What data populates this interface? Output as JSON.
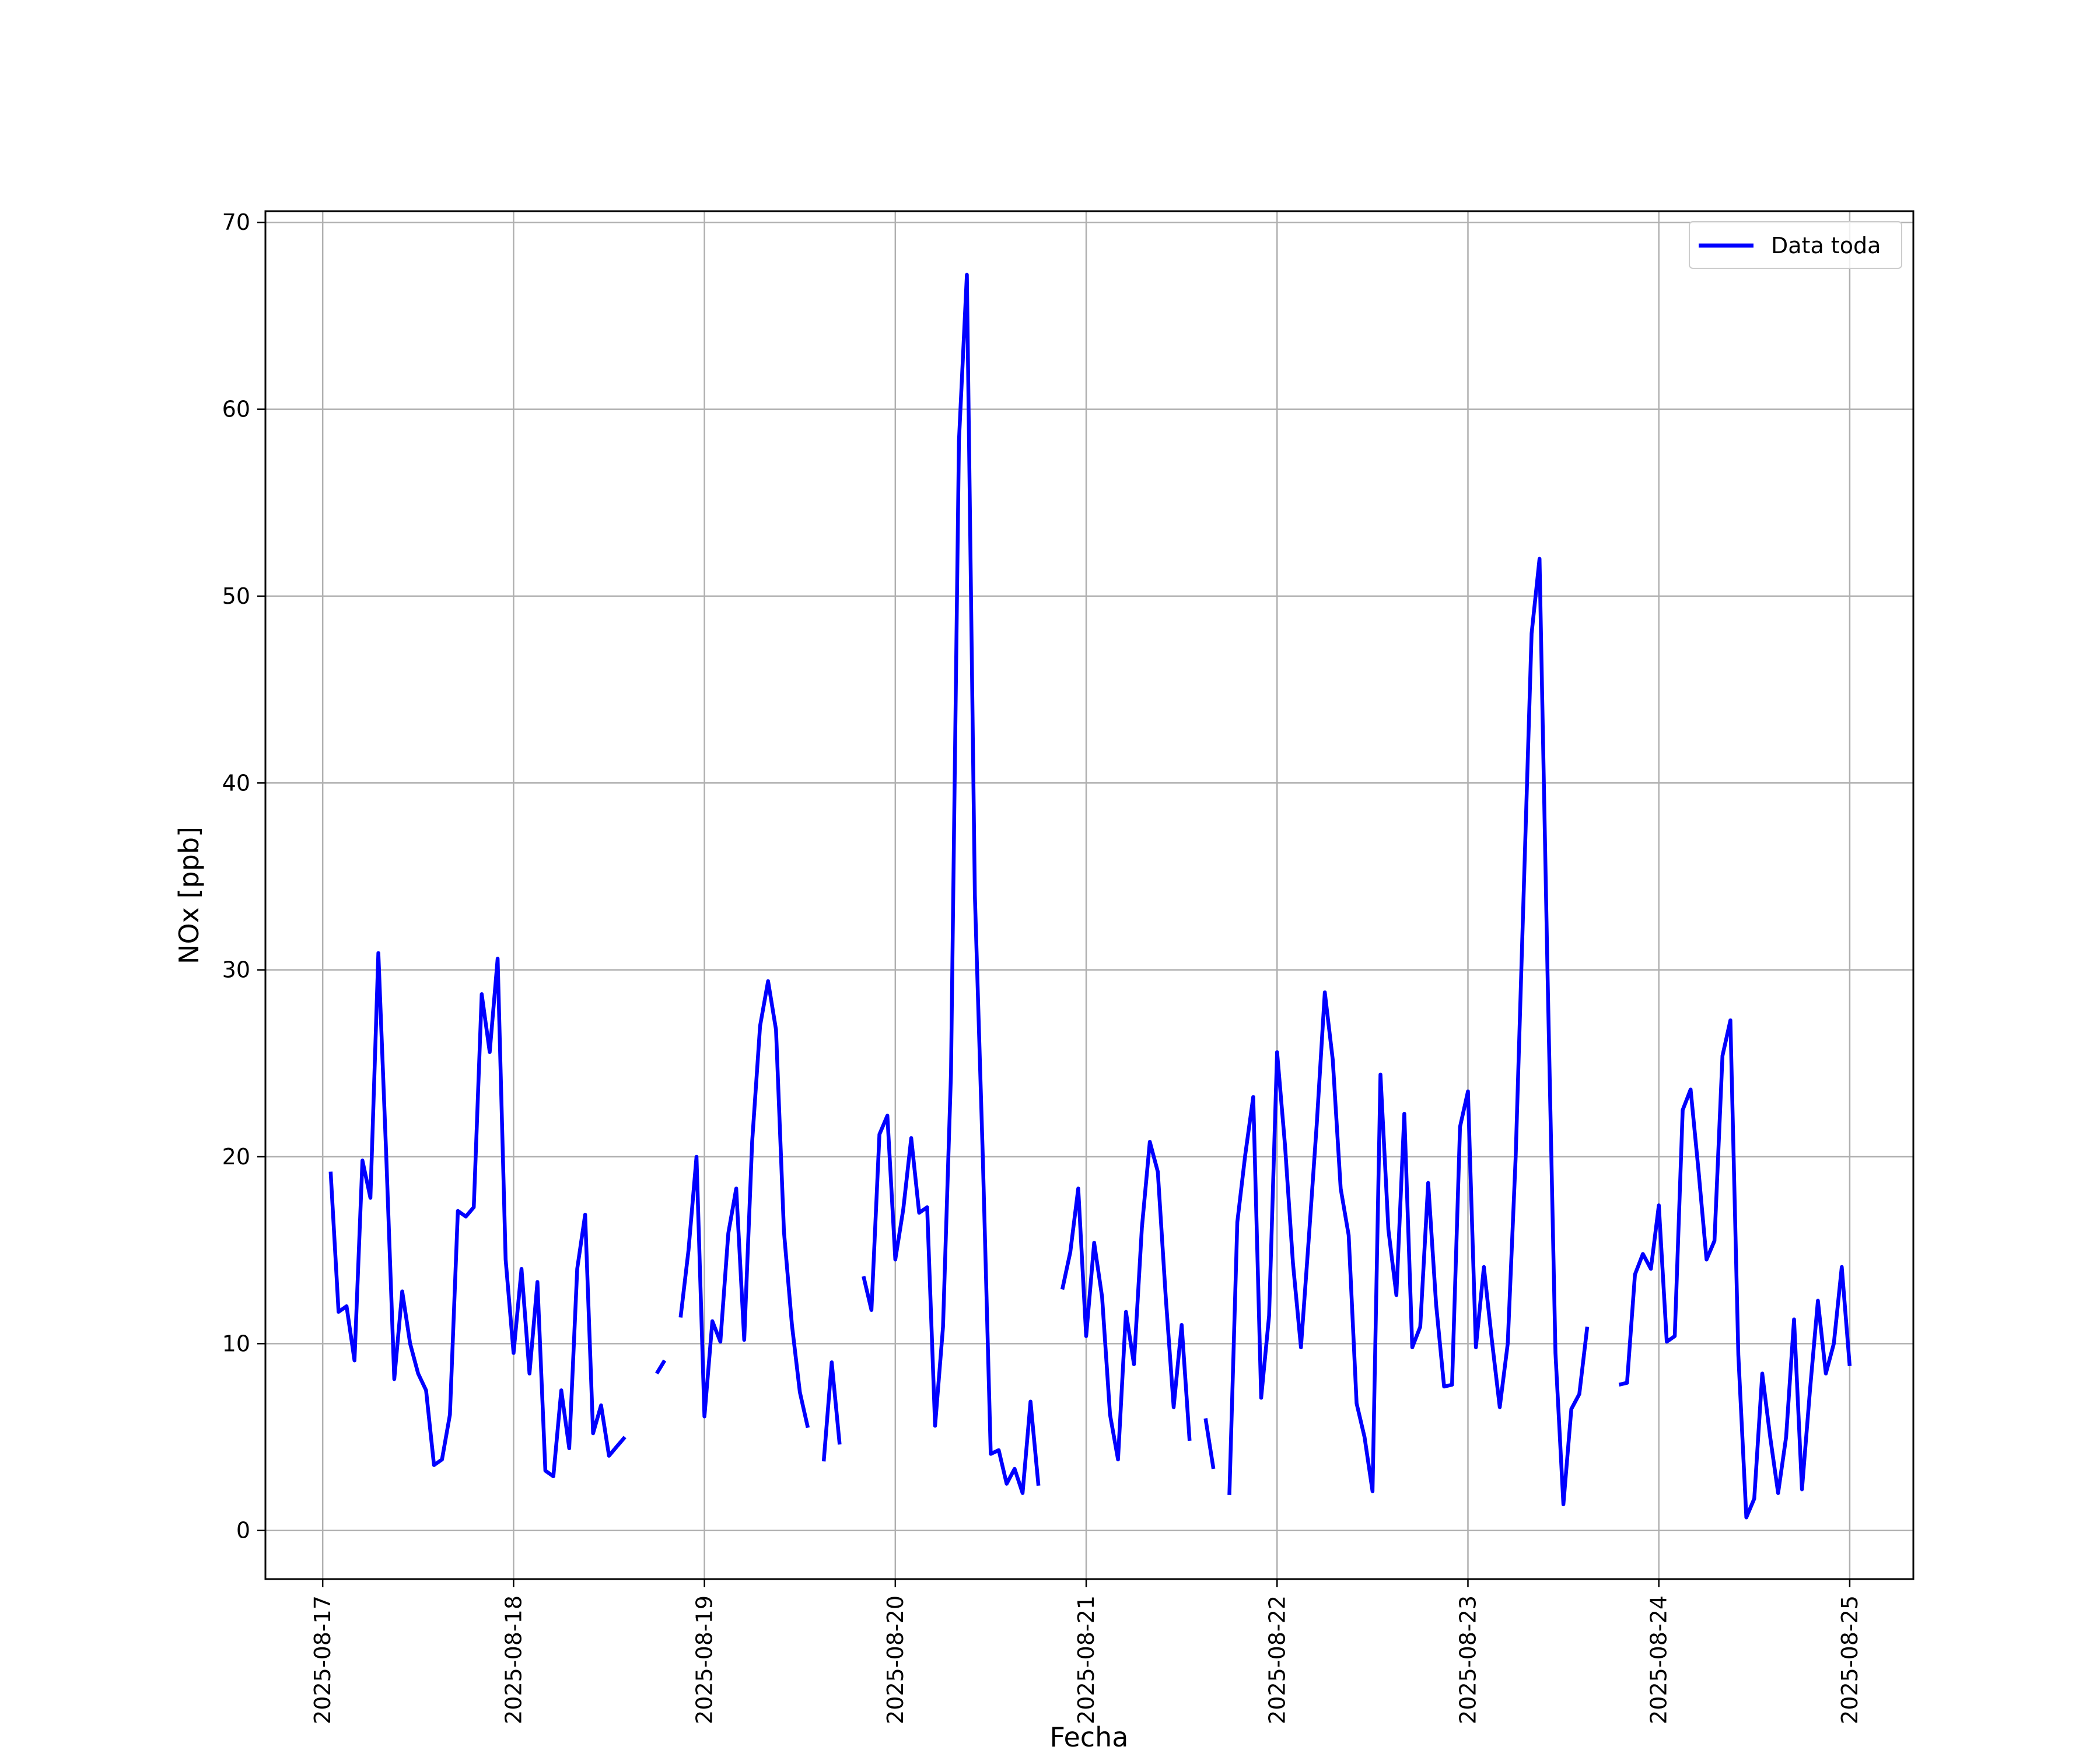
{
  "chart_data": {
    "type": "line",
    "xlabel": "Fecha",
    "ylabel": "NOx [ppb]",
    "x_ticks": [
      "2025-08-17",
      "2025-08-18",
      "2025-08-19",
      "2025-08-20",
      "2025-08-21",
      "2025-08-22",
      "2025-08-23",
      "2025-08-24",
      "2025-08-25"
    ],
    "y_ticks": [
      0,
      10,
      20,
      30,
      40,
      50,
      60,
      70
    ],
    "xlim": [
      "2025-08-16 16:48",
      "2025-08-25 08:00"
    ],
    "ylim": [
      -2.6,
      70.6
    ],
    "grid": true,
    "legend": {
      "position": "top-right",
      "entries": [
        "Data toda"
      ]
    },
    "series": [
      {
        "name": "Data toda",
        "color": "#0000ff",
        "points": [
          [
            "2025-08-17 01:00",
            19.2
          ],
          [
            "2025-08-17 02:00",
            11.7
          ],
          [
            "2025-08-17 03:00",
            12.0
          ],
          [
            "2025-08-17 04:00",
            9.1
          ],
          [
            "2025-08-17 05:00",
            19.8
          ],
          [
            "2025-08-17 06:00",
            17.8
          ],
          [
            "2025-08-17 07:00",
            30.9
          ],
          [
            "2025-08-17 08:00",
            20.0
          ],
          [
            "2025-08-17 09:00",
            8.1
          ],
          [
            "2025-08-17 10:00",
            12.8
          ],
          [
            "2025-08-17 11:00",
            10.0
          ],
          [
            "2025-08-17 12:00",
            8.4
          ],
          [
            "2025-08-17 13:00",
            7.5
          ],
          [
            "2025-08-17 14:00",
            3.5
          ],
          [
            "2025-08-17 15:00",
            3.8
          ],
          [
            "2025-08-17 16:00",
            6.2
          ],
          [
            "2025-08-17 17:00",
            17.1
          ],
          [
            "2025-08-17 18:00",
            16.8
          ],
          [
            "2025-08-17 19:00",
            17.3
          ],
          [
            "2025-08-17 20:00",
            28.7
          ],
          [
            "2025-08-17 21:00",
            25.6
          ],
          [
            "2025-08-17 22:00",
            30.6
          ],
          [
            "2025-08-17 23:00",
            14.5
          ],
          [
            "2025-08-18 00:00",
            9.5
          ],
          [
            "2025-08-18 01:00",
            14.0
          ],
          [
            "2025-08-18 02:00",
            8.4
          ],
          [
            "2025-08-18 03:00",
            13.3
          ],
          [
            "2025-08-18 04:00",
            3.2
          ],
          [
            "2025-08-18 05:00",
            2.9
          ],
          [
            "2025-08-18 06:00",
            7.5
          ],
          [
            "2025-08-18 07:00",
            4.4
          ],
          [
            "2025-08-18 08:00",
            14.0
          ],
          [
            "2025-08-18 09:00",
            16.9
          ],
          [
            "2025-08-18 10:00",
            5.2
          ],
          [
            "2025-08-18 11:00",
            6.7
          ],
          [
            "2025-08-18 12:00",
            4.0
          ],
          [
            "2025-08-18 13:00",
            4.5
          ],
          [
            "2025-08-18 14:00",
            5.0
          ],
          null,
          null,
          null,
          [
            "2025-08-18 18:00",
            8.4
          ],
          [
            "2025-08-18 19:00",
            9.1
          ],
          null,
          [
            "2025-08-18 21:00",
            11.4
          ],
          [
            "2025-08-18 22:00",
            15.0
          ],
          [
            "2025-08-18 23:00",
            20.0
          ],
          [
            "2025-08-19 00:00",
            6.1
          ],
          [
            "2025-08-19 01:00",
            11.2
          ],
          [
            "2025-08-19 02:00",
            10.1
          ],
          [
            "2025-08-19 03:00",
            15.9
          ],
          [
            "2025-08-19 04:00",
            18.3
          ],
          [
            "2025-08-19 05:00",
            10.2
          ],
          [
            "2025-08-19 06:00",
            20.8
          ],
          [
            "2025-08-19 07:00",
            27.0
          ],
          [
            "2025-08-19 08:00",
            29.4
          ],
          [
            "2025-08-19 09:00",
            26.8
          ],
          [
            "2025-08-19 10:00",
            16.0
          ],
          [
            "2025-08-19 11:00",
            11.0
          ],
          [
            "2025-08-19 12:00",
            7.4
          ],
          [
            "2025-08-19 13:00",
            5.5
          ],
          null,
          [
            "2025-08-19 15:00",
            3.7
          ],
          [
            "2025-08-19 16:00",
            9.0
          ],
          [
            "2025-08-19 17:00",
            4.6
          ],
          null,
          null,
          [
            "2025-08-19 20:00",
            13.6
          ],
          [
            "2025-08-19 21:00",
            11.8
          ],
          [
            "2025-08-19 22:00",
            21.2
          ],
          [
            "2025-08-19 23:00",
            22.2
          ],
          [
            "2025-08-20 00:00",
            14.5
          ],
          [
            "2025-08-20 01:00",
            17.2
          ],
          [
            "2025-08-20 02:00",
            21.0
          ],
          [
            "2025-08-20 03:00",
            17.0
          ],
          [
            "2025-08-20 04:00",
            17.3
          ],
          [
            "2025-08-20 05:00",
            5.6
          ],
          [
            "2025-08-20 06:00",
            10.9
          ],
          [
            "2025-08-20 07:00",
            24.5
          ],
          [
            "2025-08-20 08:00",
            58.3
          ],
          [
            "2025-08-20 09:00",
            67.2
          ],
          [
            "2025-08-20 10:00",
            34.0
          ],
          [
            "2025-08-20 11:00",
            20.0
          ],
          [
            "2025-08-20 12:00",
            4.1
          ],
          [
            "2025-08-20 13:00",
            4.3
          ],
          [
            "2025-08-20 14:00",
            2.5
          ],
          [
            "2025-08-20 15:00",
            3.3
          ],
          [
            "2025-08-20 16:00",
            2.0
          ],
          [
            "2025-08-20 17:00",
            6.9
          ],
          [
            "2025-08-20 18:00",
            2.4
          ],
          null,
          null,
          [
            "2025-08-20 21:00",
            12.9
          ],
          [
            "2025-08-20 22:00",
            14.9
          ],
          [
            "2025-08-20 23:00",
            18.3
          ],
          [
            "2025-08-21 00:00",
            10.4
          ],
          [
            "2025-08-21 01:00",
            15.4
          ],
          [
            "2025-08-21 02:00",
            12.5
          ],
          [
            "2025-08-21 03:00",
            6.2
          ],
          [
            "2025-08-21 04:00",
            3.8
          ],
          [
            "2025-08-21 05:00",
            11.7
          ],
          [
            "2025-08-21 06:00",
            8.9
          ],
          [
            "2025-08-21 07:00",
            16.2
          ],
          [
            "2025-08-21 08:00",
            20.8
          ],
          [
            "2025-08-21 09:00",
            19.2
          ],
          [
            "2025-08-21 10:00",
            12.5
          ],
          [
            "2025-08-21 11:00",
            6.6
          ],
          [
            "2025-08-21 12:00",
            11.0
          ],
          [
            "2025-08-21 13:00",
            4.8
          ],
          null,
          [
            "2025-08-21 15:00",
            6.0
          ],
          [
            "2025-08-21 16:00",
            3.3
          ],
          null,
          [
            "2025-08-21 18:00",
            1.9
          ],
          [
            "2025-08-21 19:00",
            16.5
          ],
          [
            "2025-08-21 20:00",
            20.1
          ],
          [
            "2025-08-21 21:00",
            23.2
          ],
          [
            "2025-08-21 22:00",
            7.1
          ],
          [
            "2025-08-21 23:00",
            11.5
          ],
          [
            "2025-08-22 00:00",
            25.6
          ],
          [
            "2025-08-22 01:00",
            20.6
          ],
          [
            "2025-08-22 02:00",
            14.3
          ],
          [
            "2025-08-22 03:00",
            9.8
          ],
          [
            "2025-08-22 04:00",
            15.7
          ],
          [
            "2025-08-22 05:00",
            21.8
          ],
          [
            "2025-08-22 06:00",
            28.8
          ],
          [
            "2025-08-22 07:00",
            25.2
          ],
          [
            "2025-08-22 08:00",
            18.3
          ],
          [
            "2025-08-22 09:00",
            15.8
          ],
          [
            "2025-08-22 10:00",
            6.8
          ],
          [
            "2025-08-22 11:00",
            5.0
          ],
          [
            "2025-08-22 12:00",
            2.1
          ],
          [
            "2025-08-22 13:00",
            24.4
          ],
          [
            "2025-08-22 14:00",
            16.1
          ],
          [
            "2025-08-22 15:00",
            12.6
          ],
          [
            "2025-08-22 16:00",
            22.3
          ],
          [
            "2025-08-22 17:00",
            9.8
          ],
          [
            "2025-08-22 18:00",
            10.9
          ],
          [
            "2025-08-22 19:00",
            18.6
          ],
          [
            "2025-08-22 20:00",
            12.1
          ],
          [
            "2025-08-22 21:00",
            7.7
          ],
          [
            "2025-08-22 22:00",
            7.8
          ],
          [
            "2025-08-22 23:00",
            21.6
          ],
          [
            "2025-08-23 00:00",
            23.5
          ],
          [
            "2025-08-23 01:00",
            9.8
          ],
          [
            "2025-08-23 02:00",
            14.1
          ],
          [
            "2025-08-23 03:00",
            10.2
          ],
          [
            "2025-08-23 04:00",
            6.6
          ],
          [
            "2025-08-23 05:00",
            10.0
          ],
          [
            "2025-08-23 06:00",
            20.0
          ],
          [
            "2025-08-23 07:00",
            34.0
          ],
          [
            "2025-08-23 08:00",
            48.0
          ],
          [
            "2025-08-23 09:00",
            52.0
          ],
          [
            "2025-08-23 10:00",
            30.0
          ],
          [
            "2025-08-23 11:00",
            9.5
          ],
          [
            "2025-08-23 12:00",
            1.4
          ],
          [
            "2025-08-23 13:00",
            6.5
          ],
          [
            "2025-08-23 14:00",
            7.3
          ],
          [
            "2025-08-23 15:00",
            10.9
          ],
          null,
          null,
          null,
          [
            "2025-08-23 19:00",
            7.8
          ],
          [
            "2025-08-23 20:00",
            7.9
          ],
          [
            "2025-08-23 21:00",
            13.7
          ],
          [
            "2025-08-23 22:00",
            14.8
          ],
          [
            "2025-08-23 23:00",
            14.0
          ],
          [
            "2025-08-24 00:00",
            17.4
          ],
          [
            "2025-08-24 01:00",
            10.1
          ],
          [
            "2025-08-24 02:00",
            10.4
          ],
          [
            "2025-08-24 03:00",
            22.5
          ],
          [
            "2025-08-24 04:00",
            23.6
          ],
          [
            "2025-08-24 05:00",
            19.2
          ],
          [
            "2025-08-24 06:00",
            14.5
          ],
          [
            "2025-08-24 07:00",
            15.5
          ],
          [
            "2025-08-24 08:00",
            25.4
          ],
          [
            "2025-08-24 09:00",
            27.3
          ],
          [
            "2025-08-24 10:00",
            9.4
          ],
          [
            "2025-08-24 11:00",
            0.7
          ],
          [
            "2025-08-24 12:00",
            1.7
          ],
          [
            "2025-08-24 13:00",
            8.4
          ],
          [
            "2025-08-24 14:00",
            5.0
          ],
          [
            "2025-08-24 15:00",
            2.0
          ],
          [
            "2025-08-24 16:00",
            5.0
          ],
          [
            "2025-08-24 17:00",
            11.3
          ],
          [
            "2025-08-24 18:00",
            2.2
          ],
          [
            "2025-08-24 19:00",
            7.5
          ],
          [
            "2025-08-24 20:00",
            12.3
          ],
          [
            "2025-08-24 21:00",
            8.4
          ],
          [
            "2025-08-24 22:00",
            10.0
          ],
          [
            "2025-08-24 23:00",
            14.1
          ],
          [
            "2025-08-25 00:00",
            8.8
          ]
        ]
      }
    ]
  }
}
